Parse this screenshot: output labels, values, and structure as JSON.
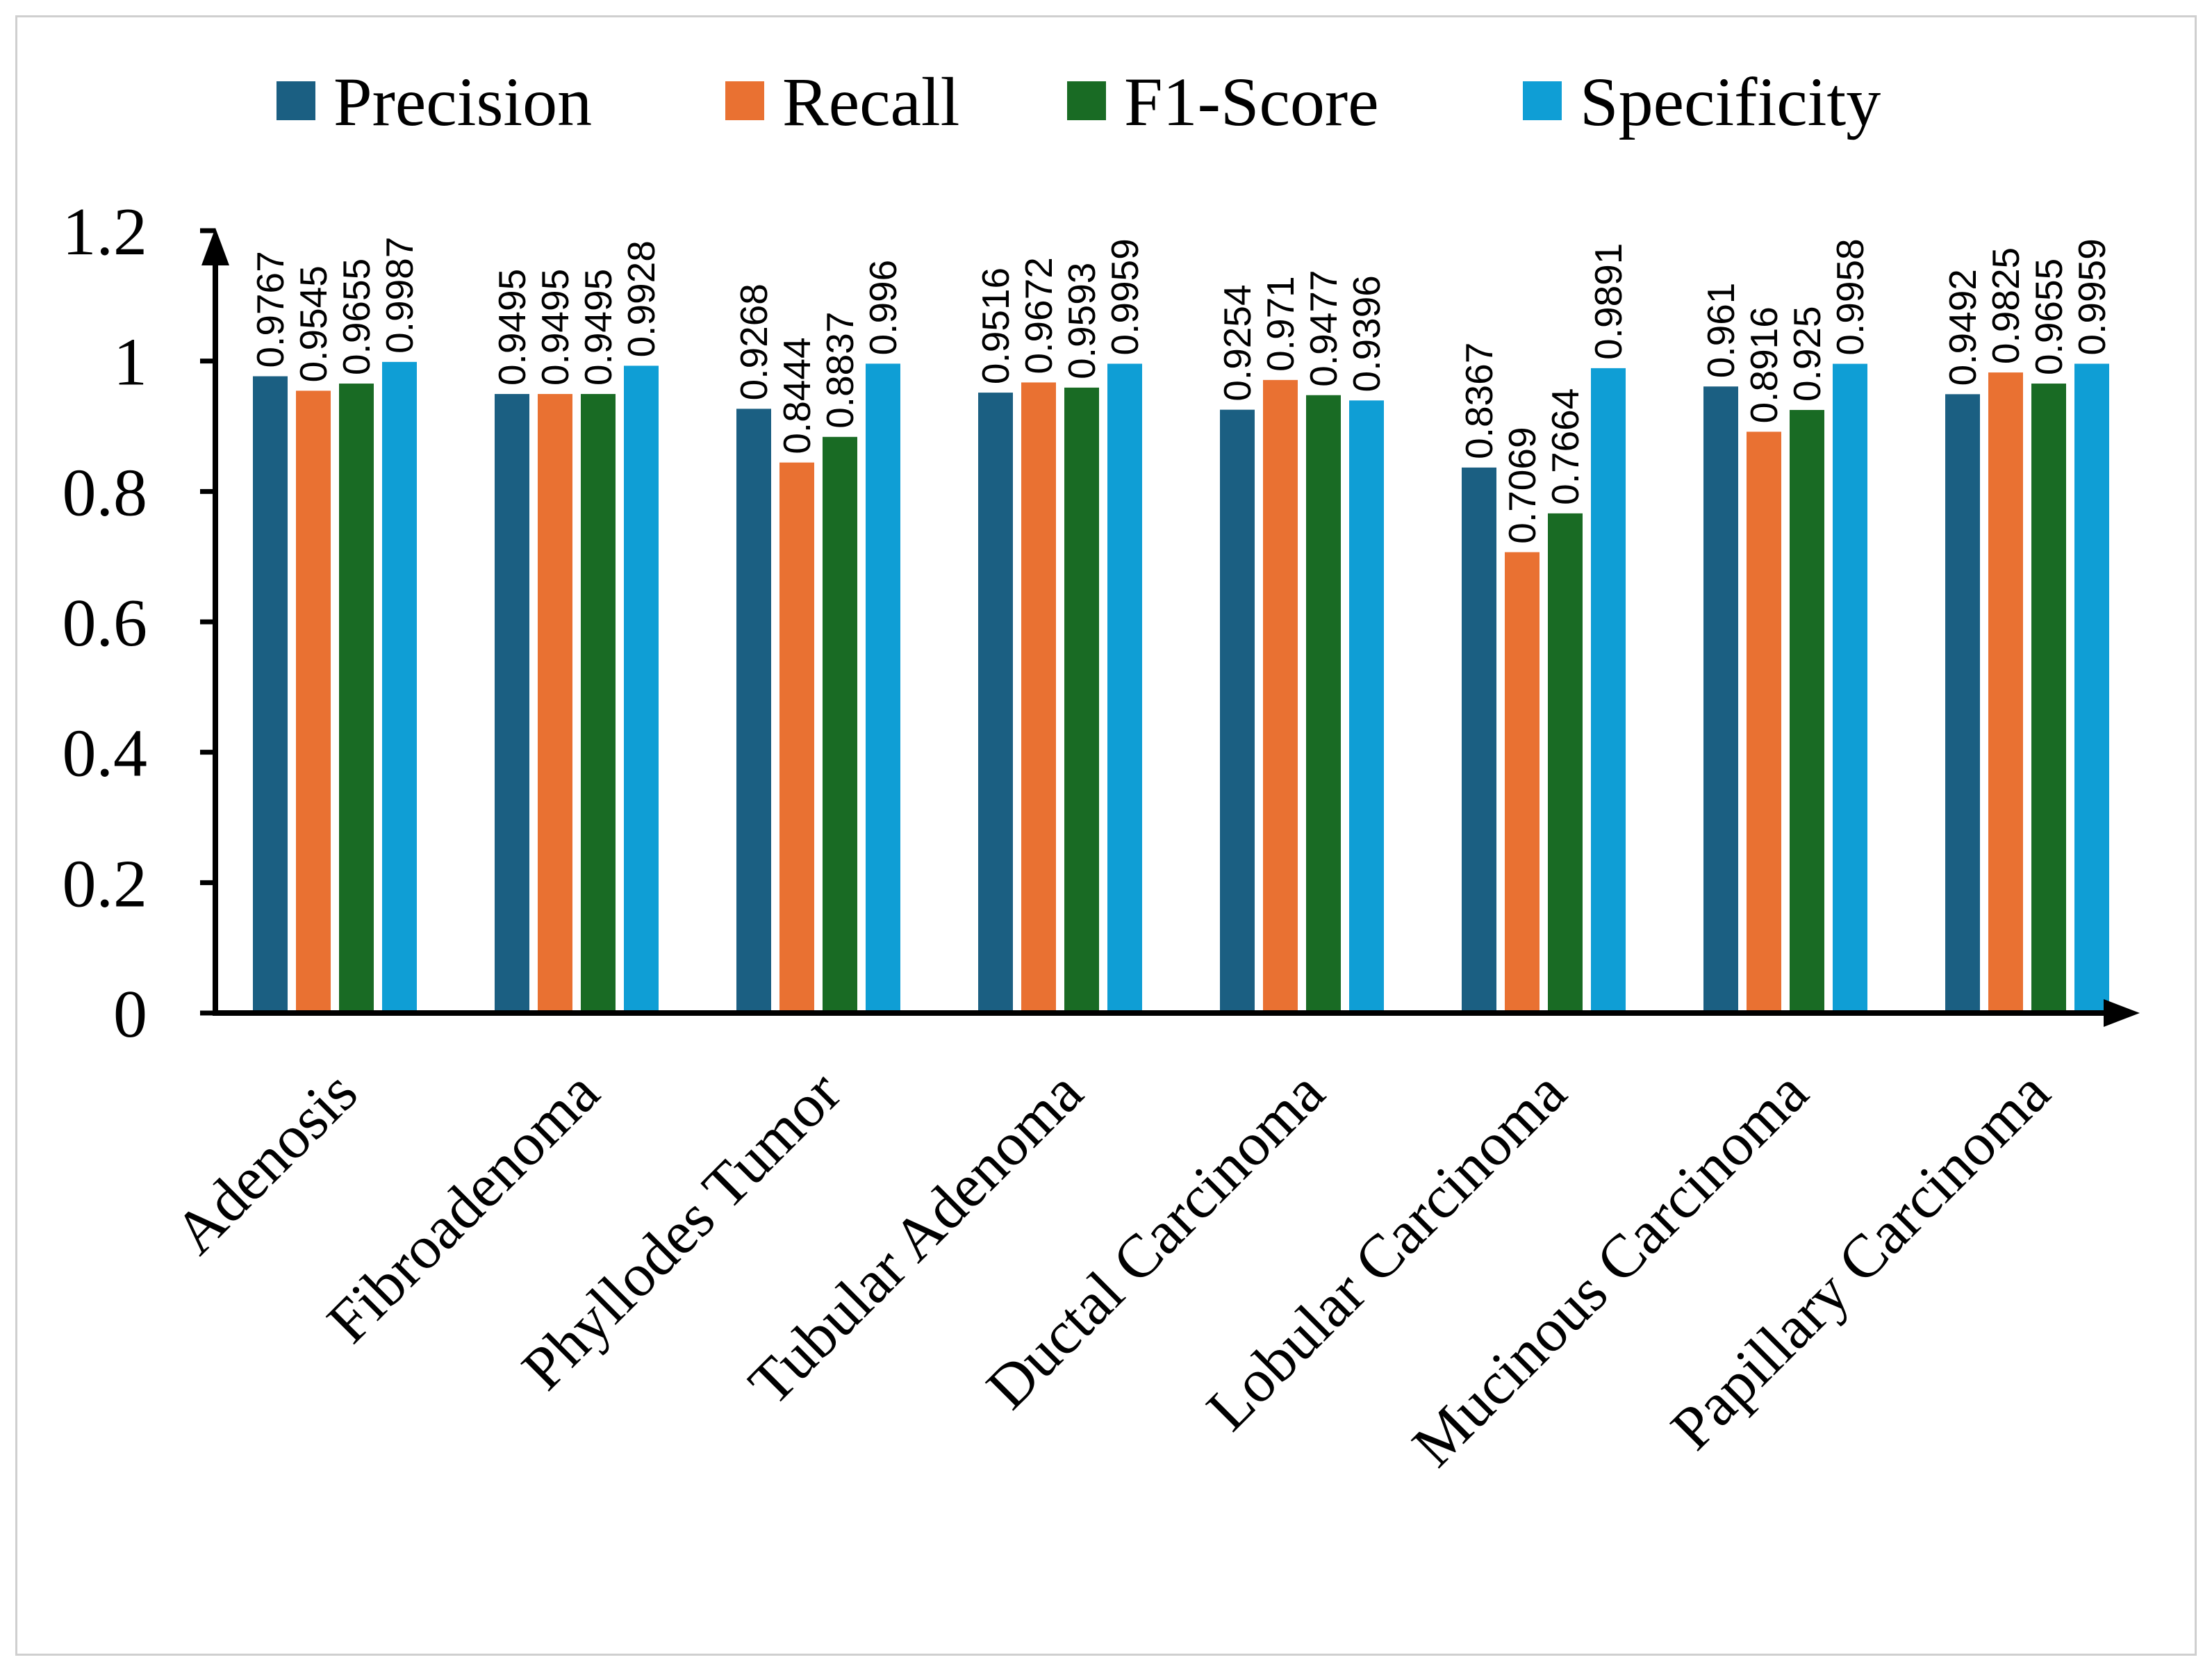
{
  "chart_data": {
    "type": "bar",
    "title": "",
    "xlabel": "",
    "ylabel": "",
    "ylim": [
      0,
      1.2
    ],
    "yticks": [
      "0",
      "0.2",
      "0.4",
      "0.6",
      "0.8",
      "1",
      "1.2"
    ],
    "legend_position": "top",
    "grid": false,
    "categories": [
      "Adenosis",
      "Fibroadenoma",
      "Phyllodes Tumor",
      "Tubular Adenoma",
      "Ductal Carcinoma",
      "Lobular Carcinoma",
      "Mucinous Carcinoma",
      "Papillary Carcinoma"
    ],
    "series": [
      {
        "name": "Precision",
        "color": "#1b5f82",
        "values": [
          0.9767,
          0.9495,
          0.9268,
          0.9516,
          0.9254,
          0.8367,
          0.961,
          0.9492
        ],
        "labels": [
          "0.9767",
          "0.9495",
          "0.9268",
          "0.9516",
          "0.9254",
          "0.8367",
          "0.961",
          "0.9492"
        ]
      },
      {
        "name": "Recall",
        "color": "#e97132",
        "values": [
          0.9545,
          0.9495,
          0.8444,
          0.9672,
          0.971,
          0.7069,
          0.8916,
          0.9825
        ],
        "labels": [
          "0.9545",
          "0.9495",
          "0.8444",
          "0.9672",
          "0.971",
          "0.7069",
          "0.8916",
          "0.9825"
        ]
      },
      {
        "name": "F1-Score",
        "color": "#196b24",
        "values": [
          0.9655,
          0.9495,
          0.8837,
          0.9593,
          0.9477,
          0.7664,
          0.925,
          0.9655
        ],
        "labels": [
          "0.9655",
          "0.9495",
          "0.8837",
          "0.9593",
          "0.9477",
          "0.7664",
          "0.925",
          "0.9655"
        ]
      },
      {
        "name": "Specificity",
        "color": "#0f9ed5",
        "values": [
          0.9987,
          0.9928,
          0.996,
          0.9959,
          0.9396,
          0.9891,
          0.9958,
          0.9959
        ],
        "labels": [
          "0.9987",
          "0.9928",
          "0.996",
          "0.9959",
          "0.9396",
          "0.9891",
          "0.9958",
          "0.9959"
        ]
      }
    ]
  }
}
